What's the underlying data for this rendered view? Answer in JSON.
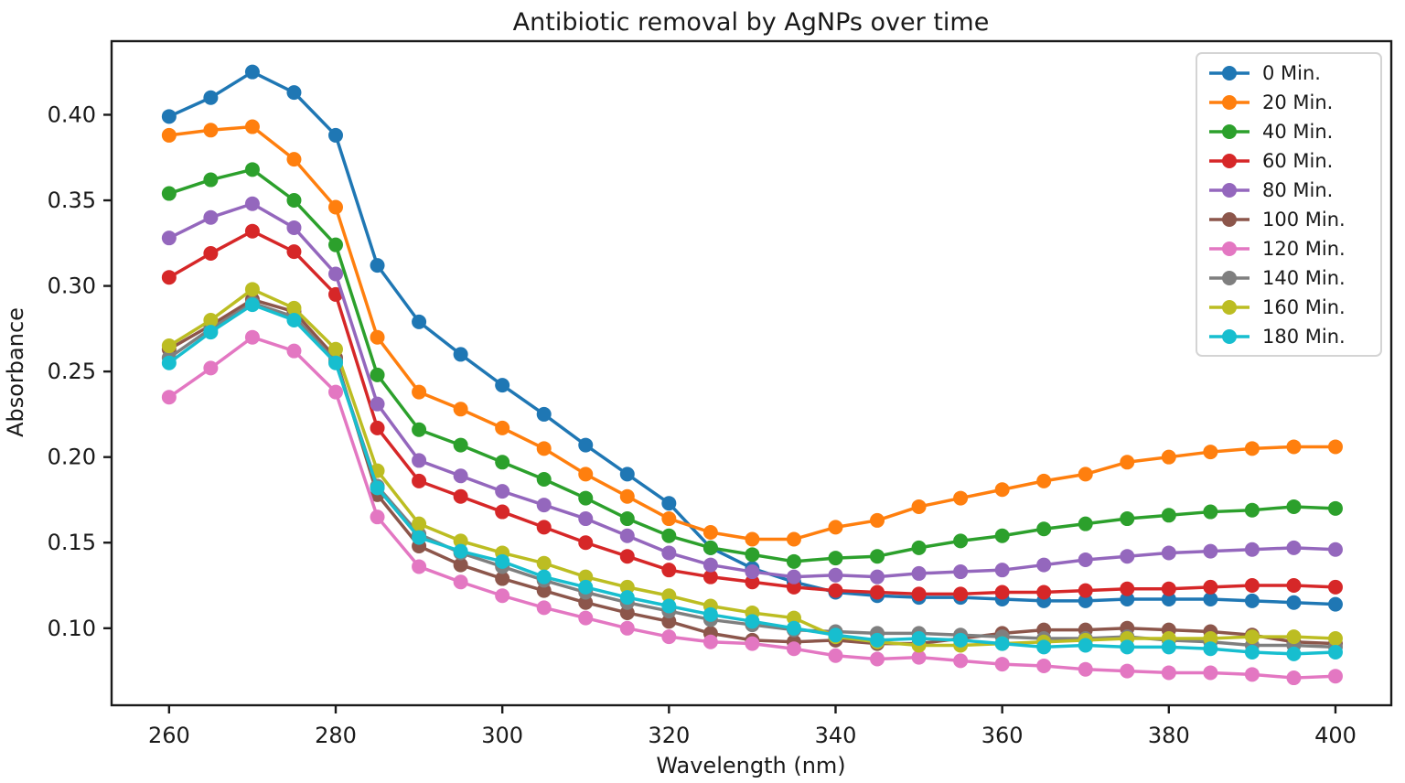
{
  "chart_data": {
    "type": "line",
    "title": "Antibiotic removal by AgNPs over time",
    "xlabel": "Wavelength (nm)",
    "ylabel": "Absorbance",
    "marker": "o",
    "grid": false,
    "legend_position": "upper right",
    "background_color": "#ffffff",
    "axis_color": "#1a1a1a",
    "xlim": [
      253.1,
      406.7
    ],
    "ylim": [
      0.055,
      0.443
    ],
    "xticks": [
      260,
      280,
      300,
      320,
      340,
      360,
      380,
      400
    ],
    "yticks": [
      0.1,
      0.15,
      0.2,
      0.25,
      0.3,
      0.35,
      0.4
    ],
    "ytick_labels": [
      "0.10",
      "0.15",
      "0.20",
      "0.25",
      "0.30",
      "0.35",
      "0.40"
    ],
    "x": [
      260,
      265,
      270,
      275,
      280,
      285,
      290,
      295,
      300,
      305,
      310,
      315,
      320,
      325,
      330,
      335,
      340,
      345,
      350,
      355,
      360,
      365,
      370,
      375,
      380,
      385,
      390,
      395,
      400
    ],
    "series": [
      {
        "name": "0 Min.",
        "color": "#1f77b4",
        "values": [
          0.399,
          0.41,
          0.425,
          0.413,
          0.388,
          0.312,
          0.279,
          0.26,
          0.242,
          0.225,
          0.207,
          0.19,
          0.173,
          0.147,
          0.135,
          0.127,
          0.121,
          0.119,
          0.118,
          0.118,
          0.117,
          0.116,
          0.116,
          0.117,
          0.117,
          0.117,
          0.116,
          0.115,
          0.114
        ]
      },
      {
        "name": "20 Min.",
        "color": "#ff7f0e",
        "values": [
          0.388,
          0.391,
          0.393,
          0.374,
          0.346,
          0.27,
          0.238,
          0.228,
          0.217,
          0.205,
          0.19,
          0.177,
          0.164,
          0.156,
          0.152,
          0.152,
          0.159,
          0.163,
          0.171,
          0.176,
          0.181,
          0.186,
          0.19,
          0.197,
          0.2,
          0.203,
          0.205,
          0.206,
          0.206
        ]
      },
      {
        "name": "40 Min.",
        "color": "#2ca02c",
        "values": [
          0.354,
          0.362,
          0.368,
          0.35,
          0.324,
          0.248,
          0.216,
          0.207,
          0.197,
          0.187,
          0.176,
          0.164,
          0.154,
          0.147,
          0.143,
          0.139,
          0.141,
          0.142,
          0.147,
          0.151,
          0.154,
          0.158,
          0.161,
          0.164,
          0.166,
          0.168,
          0.169,
          0.171,
          0.17
        ]
      },
      {
        "name": "60 Min.",
        "color": "#d62728",
        "values": [
          0.305,
          0.319,
          0.332,
          0.32,
          0.295,
          0.217,
          0.186,
          0.177,
          0.168,
          0.159,
          0.15,
          0.142,
          0.134,
          0.13,
          0.127,
          0.124,
          0.122,
          0.121,
          0.12,
          0.12,
          0.121,
          0.121,
          0.122,
          0.123,
          0.123,
          0.124,
          0.125,
          0.125,
          0.124
        ]
      },
      {
        "name": "80 Min.",
        "color": "#9467bd",
        "values": [
          0.328,
          0.34,
          0.348,
          0.334,
          0.307,
          0.231,
          0.198,
          0.189,
          0.18,
          0.172,
          0.164,
          0.154,
          0.144,
          0.137,
          0.133,
          0.13,
          0.131,
          0.13,
          0.132,
          0.133,
          0.134,
          0.137,
          0.14,
          0.142,
          0.144,
          0.145,
          0.146,
          0.147,
          0.146
        ]
      },
      {
        "name": "100 Min.",
        "color": "#8c564b",
        "values": [
          0.263,
          0.277,
          0.292,
          0.285,
          0.258,
          0.178,
          0.148,
          0.137,
          0.129,
          0.122,
          0.115,
          0.109,
          0.104,
          0.097,
          0.093,
          0.092,
          0.093,
          0.091,
          0.091,
          0.094,
          0.097,
          0.099,
          0.099,
          0.1,
          0.099,
          0.098,
          0.096,
          0.092,
          0.091
        ]
      },
      {
        "name": "120 Min.",
        "color": "#e377c2",
        "values": [
          0.235,
          0.252,
          0.27,
          0.262,
          0.238,
          0.165,
          0.136,
          0.127,
          0.119,
          0.112,
          0.106,
          0.1,
          0.095,
          0.092,
          0.091,
          0.088,
          0.084,
          0.082,
          0.083,
          0.081,
          0.079,
          0.078,
          0.076,
          0.075,
          0.074,
          0.074,
          0.073,
          0.071,
          0.072
        ]
      },
      {
        "name": "140 Min.",
        "color": "#7f7f7f",
        "values": [
          0.258,
          0.275,
          0.29,
          0.282,
          0.256,
          0.183,
          0.155,
          0.144,
          0.136,
          0.128,
          0.121,
          0.115,
          0.11,
          0.105,
          0.102,
          0.099,
          0.098,
          0.097,
          0.097,
          0.096,
          0.095,
          0.094,
          0.094,
          0.095,
          0.093,
          0.092,
          0.09,
          0.09,
          0.089
        ]
      },
      {
        "name": "160 Min.",
        "color": "#bcbd22",
        "values": [
          0.265,
          0.28,
          0.298,
          0.287,
          0.263,
          0.192,
          0.161,
          0.151,
          0.144,
          0.138,
          0.13,
          0.124,
          0.119,
          0.113,
          0.109,
          0.106,
          0.095,
          0.092,
          0.09,
          0.09,
          0.091,
          0.092,
          0.093,
          0.094,
          0.094,
          0.094,
          0.095,
          0.095,
          0.094
        ]
      },
      {
        "name": "180 Min.",
        "color": "#17becf",
        "values": [
          0.255,
          0.273,
          0.289,
          0.28,
          0.255,
          0.182,
          0.153,
          0.145,
          0.139,
          0.13,
          0.124,
          0.118,
          0.113,
          0.108,
          0.104,
          0.1,
          0.096,
          0.093,
          0.094,
          0.093,
          0.091,
          0.089,
          0.09,
          0.089,
          0.089,
          0.088,
          0.086,
          0.085,
          0.086
        ]
      }
    ]
  }
}
